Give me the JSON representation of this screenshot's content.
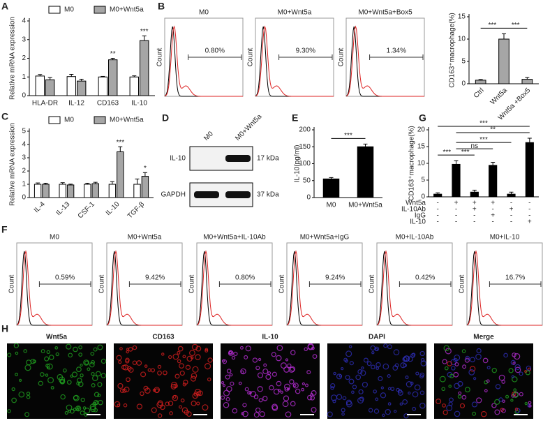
{
  "chart_data": [
    {
      "type": "bar",
      "label": "A",
      "ylabel": "Relative mRNA expression",
      "categories": [
        "HLA-DR",
        "IL-12",
        "CD163",
        "IL-10"
      ],
      "series": [
        {
          "name": "M0",
          "color": "#ffffff",
          "values": [
            1.05,
            1.02,
            1.0,
            1.0
          ],
          "errors": [
            0.08,
            0.12,
            0.03,
            0.06
          ]
        },
        {
          "name": "M0+Wnt5a",
          "color": "#a6a6a6",
          "values": [
            0.85,
            0.78,
            1.92,
            2.95
          ],
          "errors": [
            0.12,
            0.1,
            0.08,
            0.25
          ]
        }
      ],
      "significance": [
        null,
        null,
        "**",
        "***"
      ],
      "ylim": [
        0,
        4
      ],
      "yticks": [
        0,
        1,
        2,
        3,
        4
      ]
    },
    {
      "type": "flow",
      "label": "B",
      "ylabel": "Count",
      "titles": [
        "M0",
        "M0+Wnt5a",
        "M0+Wnt5a+Box5"
      ],
      "values": [
        0.8,
        9.3,
        1.34
      ],
      "value_labels": [
        "0.80%",
        "9.30%",
        "1.34%"
      ]
    },
    {
      "type": "bar",
      "ylabel": "CD163⁺macrophage(%)",
      "categories": [
        "Ctrl",
        "Wnt5a",
        "Wnt5a +Box5"
      ],
      "color": "#a6a6a6",
      "values": [
        0.8,
        10,
        1.0
      ],
      "errors": [
        0.15,
        1.2,
        0.4
      ],
      "comparisons": [
        {
          "from": 0,
          "to": 1,
          "text": "***"
        },
        {
          "from": 1,
          "to": 2,
          "text": "***"
        }
      ],
      "ylim": [
        0,
        15
      ],
      "yticks": [
        0,
        5,
        10,
        15
      ]
    },
    {
      "type": "bar",
      "label": "C",
      "ylabel": "Relative mRNA expression",
      "categories": [
        "IL-4",
        "IL-13",
        "CSF-1",
        "IL-10",
        "TGF-β"
      ],
      "series": [
        {
          "name": "M0",
          "color": "#ffffff",
          "values": [
            1.0,
            1.0,
            1.0,
            1.0,
            1.0
          ],
          "errors": [
            0.1,
            0.12,
            0.08,
            0.2,
            0.4
          ]
        },
        {
          "name": "M0+Wnt5a",
          "color": "#a6a6a6",
          "values": [
            1.0,
            0.95,
            1.05,
            3.45,
            1.6
          ],
          "errors": [
            0.08,
            0.06,
            0.1,
            0.38,
            0.28
          ]
        }
      ],
      "significance": [
        null,
        null,
        null,
        "***",
        "*"
      ],
      "ylim": [
        0,
        5
      ],
      "yticks": [
        0,
        1,
        2,
        3,
        4,
        5
      ]
    },
    {
      "type": "blot",
      "label": "D",
      "lanes": [
        "M0",
        "M0+Wnt5a"
      ],
      "bands": [
        {
          "name": "IL-10",
          "size": "17 kDa"
        },
        {
          "name": "GAPDH",
          "size": "37 kDa"
        }
      ]
    },
    {
      "type": "bar",
      "label": "E",
      "ylabel": "IL-10(pg/ml)",
      "categories": [
        "M0",
        "M0+Wnt5a"
      ],
      "color": "#000000",
      "values": [
        55,
        150
      ],
      "errors": [
        4,
        8
      ],
      "comparisons": [
        {
          "from": 0,
          "to": 1,
          "text": "***"
        }
      ],
      "ylim": [
        0,
        200
      ],
      "yticks": [
        0,
        50,
        100,
        150,
        200
      ]
    },
    {
      "type": "bar",
      "label": "G",
      "ylabel": "CD163⁺macrophage(%)",
      "categories": [
        null,
        null,
        null,
        null,
        null,
        null
      ],
      "color": "#000000",
      "values": [
        0.8,
        9.7,
        1.4,
        9.4,
        0.8,
        16.2
      ],
      "errors": [
        0.4,
        1.1,
        0.6,
        0.9,
        0.6,
        1.3
      ],
      "comparisons": [
        {
          "from": 0,
          "to": 1,
          "text": "***"
        },
        {
          "from": 1,
          "to": 2,
          "text": "***"
        },
        {
          "from": 1,
          "to": 3,
          "text": "ns"
        },
        {
          "from": 1,
          "to": 4,
          "text": "***"
        },
        {
          "from": 1,
          "to": 5,
          "text": "**"
        },
        {
          "from": 0,
          "to": 5,
          "text": "***"
        }
      ],
      "conditions": [
        {
          "name": "Wnt5a",
          "signs": [
            "-",
            "+",
            "+",
            "+",
            "-",
            "-"
          ]
        },
        {
          "name": "IL-10Ab",
          "signs": [
            "-",
            "-",
            "+",
            "-",
            "+",
            "-"
          ]
        },
        {
          "name": "IgG",
          "signs": [
            "-",
            "-",
            "-",
            "+",
            "-",
            "-"
          ]
        },
        {
          "name": "IL-10",
          "signs": [
            "-",
            "-",
            "-",
            "-",
            "-",
            "+"
          ]
        }
      ],
      "ylim": [
        0,
        20
      ],
      "yticks": [
        0,
        5,
        10,
        15,
        20
      ]
    },
    {
      "type": "flow",
      "label": "F",
      "ylabel": "Count",
      "titles": [
        "M0",
        "M0+Wnt5a",
        "M0+Wnt5a+IL-10Ab",
        "M0+Wnt5a+IgG",
        "M0+IL-10Ab",
        "M0+IL-10"
      ],
      "values": [
        0.59,
        9.42,
        0.8,
        9.24,
        0.42,
        16.7
      ],
      "value_labels": [
        "0.59%",
        "9.42%",
        "0.80%",
        "9.24%",
        "0.42%",
        "16.7%"
      ]
    },
    {
      "type": "image",
      "label": "H",
      "titles": [
        "Wnt5a",
        "CD163",
        "IL-10",
        "DAPI",
        "Merge"
      ],
      "colors": [
        "#22aa22",
        "#e02020",
        "#c030e0",
        "#3030c0",
        "#222222"
      ]
    }
  ]
}
